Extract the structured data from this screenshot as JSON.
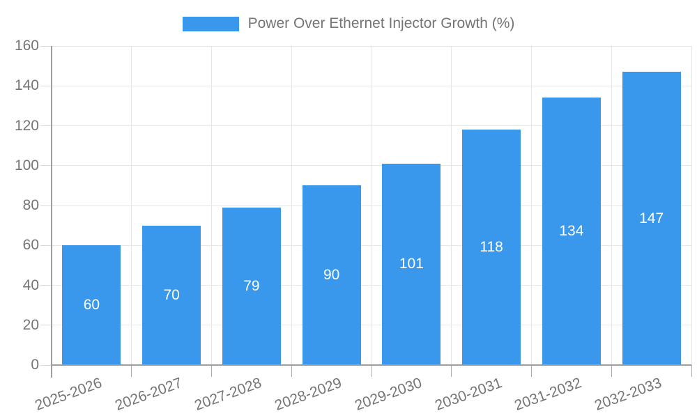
{
  "legend": {
    "label": "Power Over Ethernet Injector Growth (%)"
  },
  "colors": {
    "bar": "#3998EB",
    "grid": "#E6E6E6",
    "axis": "#9E9E9E",
    "x_tick": "#ABABAB",
    "y_tick": "#D9D9D9",
    "axis_text": "#757575",
    "bar_label_text": "#FFFFFF",
    "background": "#FFFFFF"
  },
  "chart_data": {
    "type": "bar",
    "title": "",
    "series_name": "Power Over Ethernet Injector Growth (%)",
    "categories": [
      "2025-2026",
      "2026-2027",
      "2027-2028",
      "2028-2029",
      "2029-2030",
      "2030-2031",
      "2031-2032",
      "2032-2033"
    ],
    "values": [
      60,
      70,
      79,
      90,
      101,
      118,
      134,
      147
    ],
    "value_labels": [
      "60",
      "70",
      "79",
      "90",
      "101",
      "118",
      "134",
      "147"
    ],
    "ytick_labels": [
      "0",
      "20",
      "40",
      "60",
      "80",
      "100",
      "120",
      "140",
      "160"
    ],
    "yticks": [
      0,
      20,
      40,
      60,
      80,
      100,
      120,
      140,
      160
    ],
    "ylim": [
      0,
      160
    ],
    "xlabel": "",
    "ylabel": "",
    "grid": true,
    "legend_position": "top",
    "bar_labels": "inside-center",
    "x_label_rotation_deg": -20
  }
}
